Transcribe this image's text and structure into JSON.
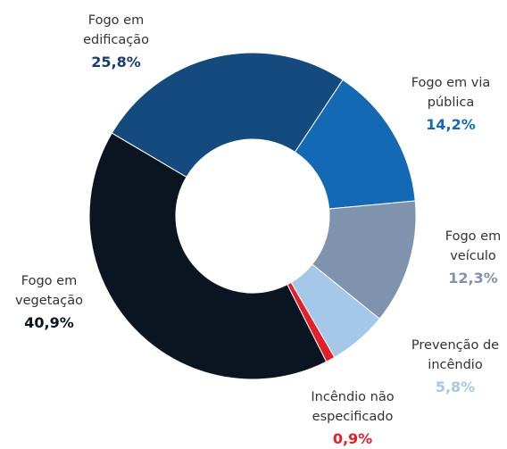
{
  "chart_data": {
    "type": "donut",
    "categories": [
      "Fogo em via pública",
      "Fogo em veículo",
      "Prevenção de incêndio",
      "Incêndio não especificado",
      "Fogo em vegetação",
      "Fogo em edificação"
    ],
    "values": [
      14.2,
      12.3,
      5.8,
      0.9,
      40.9,
      25.8
    ],
    "value_labels": [
      "14,2%",
      "12,3%",
      "5,8%",
      "0,9%",
      "40,9%",
      "25,8%"
    ],
    "colors": [
      "#1469b4",
      "#7f93ae",
      "#a6c8e8",
      "#e3202a",
      "#0b1522",
      "#154a7f"
    ]
  }
}
